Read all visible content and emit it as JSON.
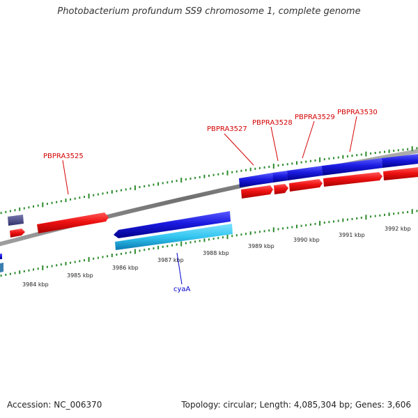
{
  "title": "Photobacterium profundum SS9 chromosome 1, complete genome",
  "footer": {
    "accession": "Accession: NC_006370",
    "summary": "Topology: circular; Length: 4,085,304 bp; Genes: 3,606"
  },
  "ruler_labels": [
    "3984 kbp",
    "3985 kbp",
    "3986 kbp",
    "3987 kbp",
    "3988 kbp",
    "3989 kbp",
    "3990 kbp",
    "3991 kbp",
    "3992 kbp"
  ],
  "gene_labels": {
    "PBPRA3525": "PBPRA3525",
    "PBPRA3527": "PBPRA3527",
    "PBPRA3528": "PBPRA3528",
    "PBPRA3529": "PBPRA3529",
    "PBPRA3530": "PBPRA3530",
    "cyaA": "cyaA"
  },
  "colors": {
    "forward_cds": "#ee1111",
    "reverse_cds": "#1a1ae0",
    "reverse_gene_light": "#33c6f0",
    "tick": "#2a8a2a",
    "backbone": "#888888",
    "label_red": "#d40000",
    "label_blue": "#0000cc"
  }
}
